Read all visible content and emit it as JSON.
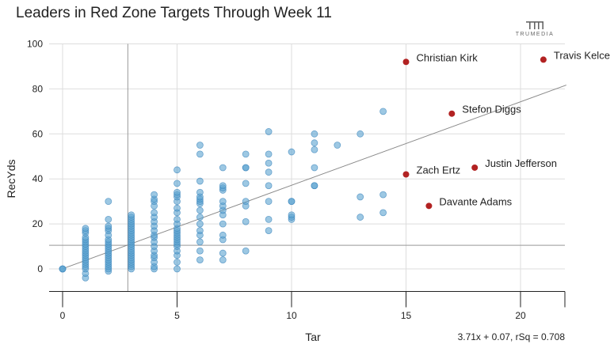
{
  "chart_data": {
    "type": "scatter",
    "title": "Leaders in Red Zone Targets Through Week 11",
    "xlabel": "Tar",
    "ylabel": "RecYds",
    "xlim": [
      0,
      22
    ],
    "ylim": [
      -10,
      100
    ],
    "x_ticks": [
      0,
      5,
      10,
      15,
      20
    ],
    "y_ticks": [
      0,
      20,
      40,
      60,
      80,
      100
    ],
    "grid": true,
    "reference_lines": {
      "x_mean": 2.85,
      "y_mean": 10.5
    },
    "trendline": {
      "slope": 3.71,
      "intercept": 0.07,
      "label": "3.71x + 0.07, rSq = 0.708"
    },
    "highlight_color": "#b22222",
    "point_color": "#5ba3d0",
    "highlighted": [
      {
        "name": "Christian Kirk",
        "x": 15,
        "y": 92
      },
      {
        "name": "Travis Kelce",
        "x": 21,
        "y": 93
      },
      {
        "name": "Stefon Diggs",
        "x": 17,
        "y": 69
      },
      {
        "name": "Justin Jefferson",
        "x": 18,
        "y": 45
      },
      {
        "name": "Zach Ertz",
        "x": 15,
        "y": 42
      },
      {
        "name": "Davante Adams",
        "x": 16,
        "y": 28
      }
    ],
    "points": [
      [
        0,
        0
      ],
      [
        0,
        0
      ],
      [
        0,
        0
      ],
      [
        1,
        -4
      ],
      [
        1,
        -2
      ],
      [
        1,
        0
      ],
      [
        1,
        1
      ],
      [
        1,
        2
      ],
      [
        1,
        3
      ],
      [
        1,
        4
      ],
      [
        1,
        5
      ],
      [
        1,
        6
      ],
      [
        1,
        7
      ],
      [
        1,
        8
      ],
      [
        1,
        9
      ],
      [
        1,
        10
      ],
      [
        1,
        11
      ],
      [
        1,
        12
      ],
      [
        1,
        13
      ],
      [
        1,
        14
      ],
      [
        1,
        16
      ],
      [
        1,
        17
      ],
      [
        1,
        18
      ],
      [
        2,
        -1
      ],
      [
        2,
        0
      ],
      [
        2,
        1
      ],
      [
        2,
        2
      ],
      [
        2,
        3
      ],
      [
        2,
        4
      ],
      [
        2,
        5
      ],
      [
        2,
        6
      ],
      [
        2,
        7
      ],
      [
        2,
        8
      ],
      [
        2,
        9
      ],
      [
        2,
        10
      ],
      [
        2,
        11
      ],
      [
        2,
        12
      ],
      [
        2,
        13
      ],
      [
        2,
        15
      ],
      [
        2,
        17
      ],
      [
        2,
        18
      ],
      [
        2,
        19
      ],
      [
        2,
        22
      ],
      [
        2,
        30
      ],
      [
        3,
        0
      ],
      [
        3,
        1
      ],
      [
        3,
        2
      ],
      [
        3,
        3
      ],
      [
        3,
        4
      ],
      [
        3,
        5
      ],
      [
        3,
        6
      ],
      [
        3,
        7
      ],
      [
        3,
        8
      ],
      [
        3,
        9
      ],
      [
        3,
        10
      ],
      [
        3,
        11
      ],
      [
        3,
        12
      ],
      [
        3,
        13
      ],
      [
        3,
        14
      ],
      [
        3,
        15
      ],
      [
        3,
        16
      ],
      [
        3,
        17
      ],
      [
        3,
        18
      ],
      [
        3,
        19
      ],
      [
        3,
        20
      ],
      [
        3,
        21
      ],
      [
        3,
        22
      ],
      [
        3,
        23
      ],
      [
        3,
        24
      ],
      [
        4,
        0
      ],
      [
        4,
        1
      ],
      [
        4,
        3
      ],
      [
        4,
        5
      ],
      [
        4,
        6
      ],
      [
        4,
        8
      ],
      [
        4,
        10
      ],
      [
        4,
        12
      ],
      [
        4,
        14
      ],
      [
        4,
        15
      ],
      [
        4,
        17
      ],
      [
        4,
        19
      ],
      [
        4,
        21
      ],
      [
        4,
        23
      ],
      [
        4,
        25
      ],
      [
        4,
        28
      ],
      [
        4,
        30
      ],
      [
        4,
        31
      ],
      [
        4,
        33
      ],
      [
        5,
        0
      ],
      [
        5,
        3
      ],
      [
        5,
        6
      ],
      [
        5,
        8
      ],
      [
        5,
        10
      ],
      [
        5,
        11
      ],
      [
        5,
        12
      ],
      [
        5,
        13
      ],
      [
        5,
        14
      ],
      [
        5,
        15
      ],
      [
        5,
        16
      ],
      [
        5,
        17
      ],
      [
        5,
        18
      ],
      [
        5,
        20
      ],
      [
        5,
        22
      ],
      [
        5,
        25
      ],
      [
        5,
        27
      ],
      [
        5,
        30
      ],
      [
        5,
        32
      ],
      [
        5,
        33
      ],
      [
        5,
        34
      ],
      [
        5,
        38
      ],
      [
        5,
        44
      ],
      [
        6,
        4
      ],
      [
        6,
        8
      ],
      [
        6,
        12
      ],
      [
        6,
        15
      ],
      [
        6,
        17
      ],
      [
        6,
        20
      ],
      [
        6,
        23
      ],
      [
        6,
        26
      ],
      [
        6,
        29
      ],
      [
        6,
        30
      ],
      [
        6,
        31
      ],
      [
        6,
        32
      ],
      [
        6,
        34
      ],
      [
        6,
        39
      ],
      [
        6,
        51
      ],
      [
        6,
        55
      ],
      [
        7,
        4
      ],
      [
        7,
        7
      ],
      [
        7,
        13
      ],
      [
        7,
        15
      ],
      [
        7,
        20
      ],
      [
        7,
        24
      ],
      [
        7,
        26
      ],
      [
        7,
        28
      ],
      [
        7,
        30
      ],
      [
        7,
        35
      ],
      [
        7,
        36
      ],
      [
        7,
        37
      ],
      [
        7,
        45
      ],
      [
        8,
        8
      ],
      [
        8,
        21
      ],
      [
        8,
        28
      ],
      [
        8,
        30
      ],
      [
        8,
        38
      ],
      [
        8,
        45
      ],
      [
        8,
        45
      ],
      [
        8,
        51
      ],
      [
        9,
        17
      ],
      [
        9,
        22
      ],
      [
        9,
        30
      ],
      [
        9,
        37
      ],
      [
        9,
        43
      ],
      [
        9,
        47
      ],
      [
        9,
        51
      ],
      [
        9,
        61
      ],
      [
        10,
        22
      ],
      [
        10,
        23
      ],
      [
        10,
        24
      ],
      [
        10,
        30
      ],
      [
        10,
        30
      ],
      [
        10,
        52
      ],
      [
        11,
        37
      ],
      [
        11,
        37
      ],
      [
        11,
        45
      ],
      [
        11,
        53
      ],
      [
        11,
        56
      ],
      [
        11,
        60
      ],
      [
        12,
        55
      ],
      [
        13,
        23
      ],
      [
        13,
        32
      ],
      [
        13,
        60
      ],
      [
        14,
        25
      ],
      [
        14,
        33
      ],
      [
        14,
        70
      ]
    ]
  },
  "branding": {
    "logo_text": "TRUMEDIA"
  }
}
